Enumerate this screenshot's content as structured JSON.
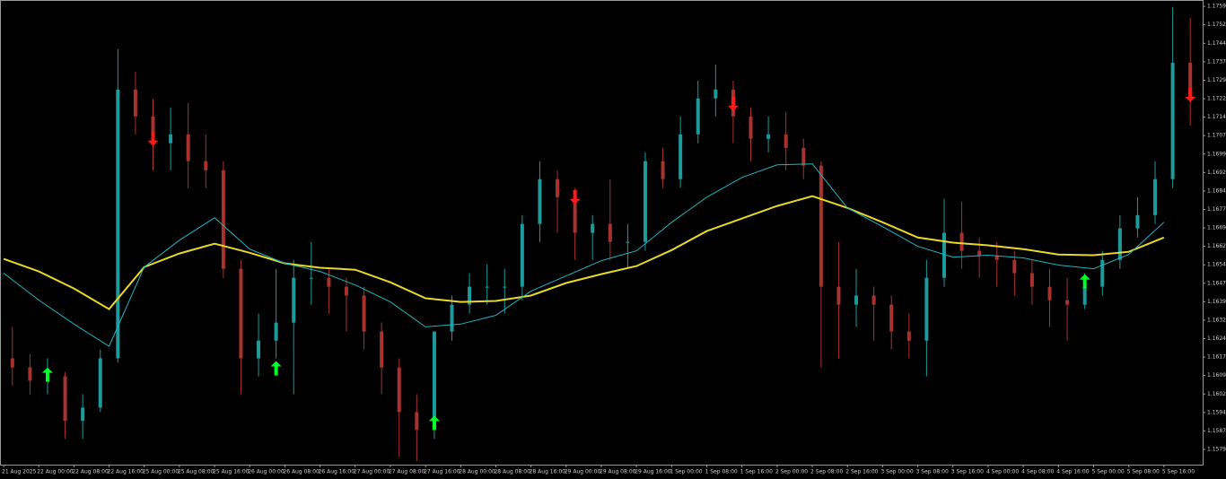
{
  "chart_data": {
    "type": "candlestick",
    "categories": [
      "21 Aug 2025",
      "22 Aug 00:00",
      "22 Aug 08:00",
      "22 Aug 16:00",
      "25 Aug 00:00",
      "25 Aug 08:00",
      "25 Aug 16:00",
      "26 Aug 00:00",
      "26 Aug 08:00",
      "26 Aug 16:00",
      "27 Aug 00:00",
      "27 Aug 08:00",
      "27 Aug 16:00",
      "28 Aug 00:00",
      "28 Aug 08:00",
      "28 Aug 16:00",
      "29 Aug 00:00",
      "29 Aug 08:00",
      "29 Aug 16:00",
      "1 Sep 00:00",
      "1 Sep 08:00",
      "1 Sep 16:00",
      "2 Sep 00:00",
      "2 Sep 08:00",
      "2 Sep 16:00",
      "3 Sep 00:00",
      "3 Sep 08:00",
      "3 Sep 16:00",
      "4 Sep 00:00",
      "4 Sep 08:00",
      "4 Sep 16:00",
      "5 Sep 00:00",
      "5 Sep 08:00",
      "5 Sep 16:00"
    ],
    "candles": [
      [
        1.16165,
        1.16292,
        1.16055,
        1.16128
      ],
      [
        1.16128,
        1.16183,
        1.16019,
        1.16074
      ],
      [
        1.16074,
        1.16165,
        1.16019,
        1.16092
      ],
      [
        1.16092,
        1.1611,
        1.15838,
        1.15911
      ],
      [
        1.15911,
        1.16019,
        1.15838,
        1.15965
      ],
      [
        1.15965,
        1.16201,
        1.15947,
        1.16165
      ],
      [
        1.16165,
        1.17421,
        1.16147,
        1.17257
      ],
      [
        1.17257,
        1.1733,
        1.17075,
        1.17148
      ],
      [
        1.17148,
        1.17221,
        1.16929,
        1.17039
      ],
      [
        1.17039,
        1.17184,
        1.16929,
        1.17075
      ],
      [
        1.17075,
        1.17202,
        1.16857,
        1.16966
      ],
      [
        1.16966,
        1.17075,
        1.16857,
        1.16929
      ],
      [
        1.16929,
        1.16966,
        1.16492,
        1.16529
      ],
      [
        1.16529,
        1.16565,
        1.16019,
        1.16165
      ],
      [
        1.16165,
        1.16347,
        1.16092,
        1.16237
      ],
      [
        1.16237,
        1.16529,
        1.16165,
        1.1631
      ],
      [
        1.1631,
        1.16565,
        1.16019,
        1.16492
      ],
      [
        1.16492,
        1.16638,
        1.16383,
        1.16492
      ],
      [
        1.16492,
        1.16529,
        1.16347,
        1.16456
      ],
      [
        1.16456,
        1.16492,
        1.16274,
        1.1642
      ],
      [
        1.1642,
        1.16456,
        1.16201,
        1.16274
      ],
      [
        1.16274,
        1.1631,
        1.16019,
        1.16128
      ],
      [
        1.16128,
        1.16165,
        1.15765,
        1.15947
      ],
      [
        1.15947,
        1.16019,
        1.15747,
        1.15874
      ],
      [
        1.15874,
        1.16274,
        1.15838,
        1.16274
      ],
      [
        1.16274,
        1.1642,
        1.16237,
        1.16383
      ],
      [
        1.16383,
        1.16511,
        1.16347,
        1.16456
      ],
      [
        1.16456,
        1.16547,
        1.16383,
        1.16456
      ],
      [
        1.16456,
        1.16529,
        1.16347,
        1.16456
      ],
      [
        1.16456,
        1.16747,
        1.16401,
        1.16711
      ],
      [
        1.16711,
        1.16966,
        1.16638,
        1.16893
      ],
      [
        1.16893,
        1.16929,
        1.16675,
        1.1682
      ],
      [
        1.1682,
        1.16857,
        1.16565,
        1.16675
      ],
      [
        1.16675,
        1.16747,
        1.16565,
        1.16711
      ],
      [
        1.16711,
        1.16893,
        1.16565,
        1.16638
      ],
      [
        1.16638,
        1.16711,
        1.16529,
        1.16638
      ],
      [
        1.16638,
        1.17002,
        1.16602,
        1.16966
      ],
      [
        1.16966,
        1.1702,
        1.16857,
        1.16893
      ],
      [
        1.16893,
        1.17148,
        1.16857,
        1.17075
      ],
      [
        1.17075,
        1.17293,
        1.17039,
        1.17221
      ],
      [
        1.17221,
        1.17359,
        1.17148,
        1.17257
      ],
      [
        1.17257,
        1.17293,
        1.17039,
        1.17148
      ],
      [
        1.17148,
        1.17184,
        1.16966,
        1.17057
      ],
      [
        1.17057,
        1.17148,
        1.17002,
        1.17075
      ],
      [
        1.17075,
        1.17166,
        1.16929,
        1.1702
      ],
      [
        1.1702,
        1.17057,
        1.16893,
        1.16948
      ],
      [
        1.16948,
        1.16966,
        1.16128,
        1.16456
      ],
      [
        1.16456,
        1.16638,
        1.16165,
        1.16383
      ],
      [
        1.16383,
        1.16529,
        1.16292,
        1.1642
      ],
      [
        1.1642,
        1.16456,
        1.16237,
        1.16383
      ],
      [
        1.16383,
        1.1642,
        1.16201,
        1.16274
      ],
      [
        1.16274,
        1.16347,
        1.16165,
        1.16237
      ],
      [
        1.16237,
        1.16565,
        1.16092,
        1.16492
      ],
      [
        1.16492,
        1.16813,
        1.16456,
        1.16675
      ],
      [
        1.16675,
        1.16802,
        1.16529,
        1.16602
      ],
      [
        1.16602,
        1.16656,
        1.16492,
        1.16583
      ],
      [
        1.16583,
        1.16638,
        1.16456,
        1.16565
      ],
      [
        1.16565,
        1.16602,
        1.1642,
        1.16511
      ],
      [
        1.16511,
        1.16565,
        1.16383,
        1.16456
      ],
      [
        1.16456,
        1.16529,
        1.16292,
        1.16401
      ],
      [
        1.16401,
        1.16492,
        1.16237,
        1.16383
      ],
      [
        1.16383,
        1.16511,
        1.16365,
        1.16456
      ],
      [
        1.16456,
        1.16602,
        1.1642,
        1.16565
      ],
      [
        1.16565,
        1.16747,
        1.16529,
        1.16693
      ],
      [
        1.16693,
        1.1682,
        1.16656,
        1.16747
      ],
      [
        1.16747,
        1.16966,
        1.16711,
        1.16893
      ],
      [
        1.16893,
        1.17592,
        1.16857,
        1.17366
      ],
      [
        1.17366,
        1.17548,
        1.17111,
        1.17221
      ]
    ],
    "up_color": "#1f9a9a",
    "down_color": "#a8322e",
    "series": [
      {
        "color": "#e8d82a",
        "values": [
          1.16569,
          1.16518,
          1.16449,
          1.16365,
          1.16536,
          1.16591,
          1.16631,
          1.16594,
          1.16551,
          1.16533,
          1.16525,
          1.16474,
          1.16409,
          1.16394,
          1.16398,
          1.1642,
          1.16471,
          1.16507,
          1.1654,
          1.16605,
          1.16682,
          1.16733,
          1.16784,
          1.16824,
          1.16776,
          1.16718,
          1.16656,
          1.16635,
          1.16624,
          1.16609,
          1.16587,
          1.16584,
          1.16598,
          1.16656
        ]
      },
      {
        "color": "#20b4c4",
        "values": [
          1.16511,
          1.16402,
          1.16304,
          1.16214,
          1.16536,
          1.16645,
          1.16736,
          1.16609,
          1.16551,
          1.16518,
          1.16463,
          1.16394,
          1.16293,
          1.16304,
          1.1634,
          1.16438,
          1.165,
          1.16562,
          1.16602,
          1.16718,
          1.1682,
          1.169,
          1.16951,
          1.16955,
          1.16776,
          1.167,
          1.1662,
          1.16576,
          1.16584,
          1.16573,
          1.16544,
          1.16529,
          1.16587,
          1.16718
        ]
      }
    ],
    "buy_arrows": {
      "color": "#00ff2a",
      "points": [
        {
          "index": 2,
          "value": 1.16099
        },
        {
          "index": 15,
          "value": 1.16125
        },
        {
          "index": 24,
          "value": 1.15903
        },
        {
          "index": 61,
          "value": 1.16478
        }
      ]
    },
    "sell_arrows": {
      "color": "#ff1a1a",
      "points": [
        {
          "index": 8,
          "value": 1.17057
        },
        {
          "index": 32,
          "value": 1.1682
        },
        {
          "index": 41,
          "value": 1.17199
        },
        {
          "index": 67,
          "value": 1.17235
        }
      ]
    },
    "ylim": [
      1.15733,
      1.17621
    ],
    "yticks": [
      1.17595,
      {
        "value": 1.1752,
        "label": "1.17520"
      },
      1.17445,
      {
        "value": 1.1737,
        "label": "1.17370"
      },
      1.17295,
      {
        "value": 1.1722,
        "label": "1.17220"
      },
      1.17145,
      {
        "value": 1.1707,
        "label": "1.17070"
      },
      1.16995,
      {
        "value": 1.1692,
        "label": "1.16920"
      },
      1.16845,
      {
        "value": 1.1677,
        "label": "1.16770"
      },
      1.16695,
      {
        "value": 1.1662,
        "label": "1.16620"
      },
      1.16545,
      {
        "value": 1.1647,
        "label": "1.16470"
      },
      1.16395,
      {
        "value": 1.1632,
        "label": "1.16320"
      },
      1.16245,
      {
        "value": 1.1617,
        "label": "1.16170"
      },
      1.16095,
      {
        "value": 1.1602,
        "label": "1.16020"
      },
      1.15945,
      {
        "value": 1.1587,
        "label": "1.15870"
      },
      1.15795
    ]
  }
}
